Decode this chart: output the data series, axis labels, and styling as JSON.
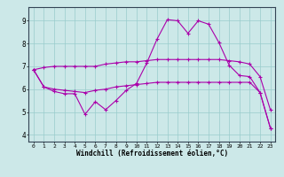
{
  "background_color": "#cce8e8",
  "line_color": "#aa00aa",
  "grid_color": "#99cccc",
  "xlabel": "Windchill (Refroidissement éolien,°C)",
  "ylabel_ticks": [
    4,
    5,
    6,
    7,
    8,
    9
  ],
  "xlim": [
    -0.5,
    23.5
  ],
  "ylim": [
    3.7,
    9.6
  ],
  "line1_x": [
    0,
    1,
    2,
    3,
    4,
    5,
    6,
    7,
    8,
    9,
    10,
    11,
    12,
    13,
    14,
    15,
    16,
    17,
    18,
    19,
    20,
    21,
    22,
    23
  ],
  "line1_y": [
    6.85,
    6.95,
    7.0,
    7.0,
    7.0,
    7.0,
    7.0,
    7.1,
    7.15,
    7.2,
    7.2,
    7.25,
    7.3,
    7.3,
    7.3,
    7.3,
    7.3,
    7.3,
    7.3,
    7.25,
    7.2,
    7.1,
    6.55,
    5.1
  ],
  "line2_x": [
    0,
    1,
    2,
    3,
    4,
    5,
    6,
    7,
    8,
    9,
    10,
    11,
    12,
    13,
    14,
    15,
    16,
    17,
    18,
    19,
    20,
    21,
    22,
    23
  ],
  "line2_y": [
    6.85,
    6.1,
    6.0,
    5.95,
    5.9,
    5.85,
    5.95,
    6.0,
    6.1,
    6.15,
    6.2,
    6.25,
    6.3,
    6.3,
    6.3,
    6.3,
    6.3,
    6.3,
    6.3,
    6.3,
    6.3,
    6.3,
    5.85,
    4.3
  ],
  "line3_x": [
    0,
    1,
    2,
    3,
    4,
    5,
    6,
    7,
    8,
    9,
    10,
    11,
    12,
    13,
    14,
    15,
    16,
    17,
    18,
    19,
    20,
    21,
    22,
    23
  ],
  "line3_y": [
    6.85,
    6.1,
    5.9,
    5.8,
    5.8,
    4.9,
    5.45,
    5.1,
    5.5,
    5.95,
    6.25,
    7.15,
    8.2,
    9.05,
    9.0,
    8.45,
    9.0,
    8.85,
    8.05,
    7.05,
    6.6,
    6.55,
    5.85,
    4.3
  ],
  "xtick_labels": [
    "0",
    "1",
    "2",
    "3",
    "4",
    "5",
    "6",
    "7",
    "8",
    "9",
    "10",
    "11",
    "12",
    "13",
    "14",
    "15",
    "16",
    "17",
    "18",
    "19",
    "20",
    "21",
    "22",
    "23"
  ],
  "marker": "+",
  "markersize": 3,
  "linewidth": 0.8,
  "spine_color": "#334455"
}
